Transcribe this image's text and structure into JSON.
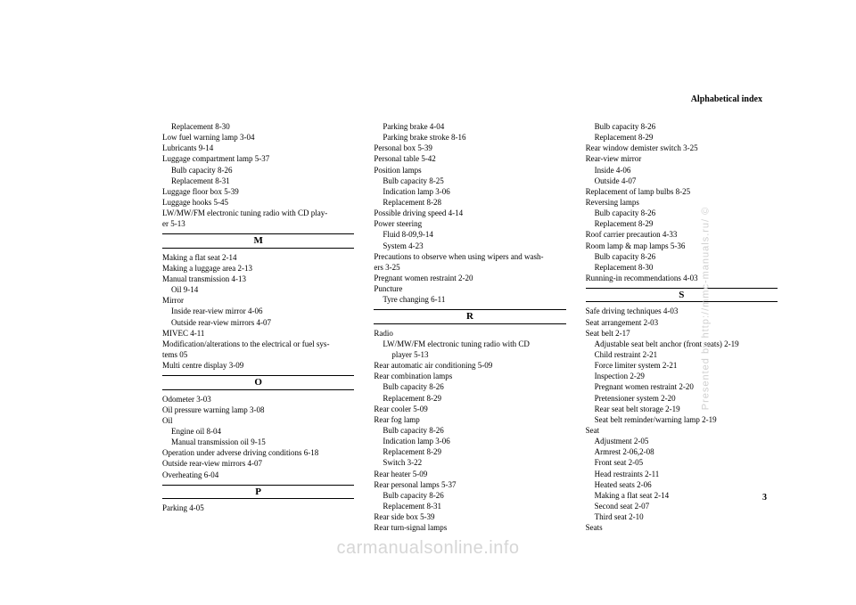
{
  "header": "Alphabetical index",
  "pageNumber": "3",
  "sideText": "Presented by http://mmc-manuals.ru/ ©",
  "watermark": "carmanualsonline.info",
  "letters": {
    "M": "M",
    "O": "O",
    "P": "P",
    "R": "R",
    "S": "S"
  },
  "col1": {
    "pre": [
      {
        "t": "Replacement  8-30",
        "i": 1
      },
      {
        "t": "Low fuel warning lamp  3-04",
        "i": 0
      },
      {
        "t": "Lubricants  9-14",
        "i": 0
      },
      {
        "t": "Luggage compartment lamp  5-37",
        "i": 0
      },
      {
        "t": "Bulb capacity  8-26",
        "i": 1
      },
      {
        "t": "Replacement  8-31",
        "i": 1
      },
      {
        "t": "Luggage floor box  5-39",
        "i": 0
      },
      {
        "t": "Luggage hooks  5-45",
        "i": 0
      },
      {
        "t": "LW/MW/FM electronic tuning radio with CD play-",
        "i": 0
      },
      {
        "t": "er  5-13",
        "i": 0
      }
    ],
    "M": [
      {
        "t": "Making a flat seat  2-14",
        "i": 0
      },
      {
        "t": "Making a luggage area  2-13",
        "i": 0
      },
      {
        "t": "Manual transmission  4-13",
        "i": 0
      },
      {
        "t": "Oil  9-14",
        "i": 1
      },
      {
        "t": "Mirror",
        "i": 0
      },
      {
        "t": "Inside rear-view mirror  4-06",
        "i": 1
      },
      {
        "t": "Outside rear-view mirrors  4-07",
        "i": 1
      },
      {
        "t": "MIVEC  4-11",
        "i": 0
      },
      {
        "t": "Modification/alterations to the electrical or fuel sys-",
        "i": 0
      },
      {
        "t": "tems  05",
        "i": 0
      },
      {
        "t": "Multi centre display  3-09",
        "i": 0
      }
    ],
    "O": [
      {
        "t": "Odometer  3-03",
        "i": 0
      },
      {
        "t": "Oil pressure warning lamp  3-08",
        "i": 0
      },
      {
        "t": "Oil",
        "i": 0
      },
      {
        "t": "Engine oil  8-04",
        "i": 1
      },
      {
        "t": "Manual transmission oil  9-15",
        "i": 1
      },
      {
        "t": "Operation under adverse driving conditions  6-18",
        "i": 0
      },
      {
        "t": "Outside rear-view mirrors  4-07",
        "i": 0
      },
      {
        "t": "Overheating  6-04",
        "i": 0
      }
    ],
    "P": [
      {
        "t": "Parking  4-05",
        "i": 0
      }
    ]
  },
  "col2": {
    "pre": [
      {
        "t": "Parking brake  4-04",
        "i": 1
      },
      {
        "t": "Parking brake stroke  8-16",
        "i": 1
      },
      {
        "t": "Personal box  5-39",
        "i": 0
      },
      {
        "t": "Personal table  5-42",
        "i": 0
      },
      {
        "t": "Position lamps",
        "i": 0
      },
      {
        "t": "Bulb capacity  8-25",
        "i": 1
      },
      {
        "t": "Indication lamp  3-06",
        "i": 1
      },
      {
        "t": "Replacement  8-28",
        "i": 1
      },
      {
        "t": "Possible driving speed  4-14",
        "i": 0
      },
      {
        "t": "Power steering",
        "i": 0
      },
      {
        "t": "Fluid  8-09,9-14",
        "i": 1
      },
      {
        "t": "System  4-23",
        "i": 1
      },
      {
        "t": "Precautions to observe when using wipers and wash-",
        "i": 0
      },
      {
        "t": "ers  3-25",
        "i": 0
      },
      {
        "t": "Pregnant women restraint  2-20",
        "i": 0
      },
      {
        "t": "Puncture",
        "i": 0
      },
      {
        "t": "Tyre changing  6-11",
        "i": 1
      }
    ],
    "R": [
      {
        "t": "Radio",
        "i": 0
      },
      {
        "t": "LW/MW/FM electronic tuning radio with CD",
        "i": 1
      },
      {
        "t": "player  5-13",
        "i": 2
      },
      {
        "t": "Rear automatic air conditioning  5-09",
        "i": 0
      },
      {
        "t": "Rear combination lamps",
        "i": 0
      },
      {
        "t": "Bulb capacity  8-26",
        "i": 1
      },
      {
        "t": "Replacement  8-29",
        "i": 1
      },
      {
        "t": "Rear cooler  5-09",
        "i": 0
      },
      {
        "t": "Rear fog lamp",
        "i": 0
      },
      {
        "t": "Bulb capacity  8-26",
        "i": 1
      },
      {
        "t": "Indication lamp  3-06",
        "i": 1
      },
      {
        "t": "Replacement  8-29",
        "i": 1
      },
      {
        "t": "Switch  3-22",
        "i": 1
      },
      {
        "t": "Rear heater  5-09",
        "i": 0
      },
      {
        "t": "Rear personal lamps  5-37",
        "i": 0
      },
      {
        "t": "Bulb capacity  8-26",
        "i": 1
      },
      {
        "t": "Replacement  8-31",
        "i": 1
      },
      {
        "t": "Rear side box  5-39",
        "i": 0
      },
      {
        "t": "Rear turn-signal lamps",
        "i": 0
      }
    ]
  },
  "col3": {
    "pre": [
      {
        "t": "Bulb capacity  8-26",
        "i": 1
      },
      {
        "t": "Replacement  8-29",
        "i": 1
      },
      {
        "t": "Rear window demister switch  3-25",
        "i": 0
      },
      {
        "t": "Rear-view mirror",
        "i": 0
      },
      {
        "t": "Inside  4-06",
        "i": 1
      },
      {
        "t": "Outside  4-07",
        "i": 1
      },
      {
        "t": "Replacement of lamp bulbs  8-25",
        "i": 0
      },
      {
        "t": "Reversing lamps",
        "i": 0
      },
      {
        "t": "Bulb capacity  8-26",
        "i": 1
      },
      {
        "t": "Replacement  8-29",
        "i": 1
      },
      {
        "t": "Roof carrier precaution  4-33",
        "i": 0
      },
      {
        "t": "Room lamp & map lamps  5-36",
        "i": 0
      },
      {
        "t": "Bulb capacity  8-26",
        "i": 1
      },
      {
        "t": "Replacement  8-30",
        "i": 1
      },
      {
        "t": "Running-in recommendations  4-03",
        "i": 0
      }
    ],
    "S": [
      {
        "t": "Safe driving techniques  4-03",
        "i": 0
      },
      {
        "t": "Seat arrangement  2-03",
        "i": 0
      },
      {
        "t": "Seat belt  2-17",
        "i": 0
      },
      {
        "t": "Adjustable seat belt anchor (front seats)  2-19",
        "i": 1
      },
      {
        "t": "Child restraint  2-21",
        "i": 1
      },
      {
        "t": "Force limiter system  2-21",
        "i": 1
      },
      {
        "t": "Inspection  2-29",
        "i": 1
      },
      {
        "t": "Pregnant women restraint  2-20",
        "i": 1
      },
      {
        "t": "Pretensioner system  2-20",
        "i": 1
      },
      {
        "t": "Rear seat belt storage  2-19",
        "i": 1
      },
      {
        "t": "Seat belt reminder/warning lamp  2-19",
        "i": 1
      },
      {
        "t": "Seat",
        "i": 0
      },
      {
        "t": "Adjustment  2-05",
        "i": 1
      },
      {
        "t": "Armrest  2-06,2-08",
        "i": 1
      },
      {
        "t": "Front seat  2-05",
        "i": 1
      },
      {
        "t": "Head restraints  2-11",
        "i": 1
      },
      {
        "t": "Heated seats  2-06",
        "i": 1
      },
      {
        "t": "Making a flat seat  2-14",
        "i": 1
      },
      {
        "t": "Second seat  2-07",
        "i": 1
      },
      {
        "t": "Third seat  2-10",
        "i": 1
      },
      {
        "t": "Seats",
        "i": 0
      }
    ]
  }
}
